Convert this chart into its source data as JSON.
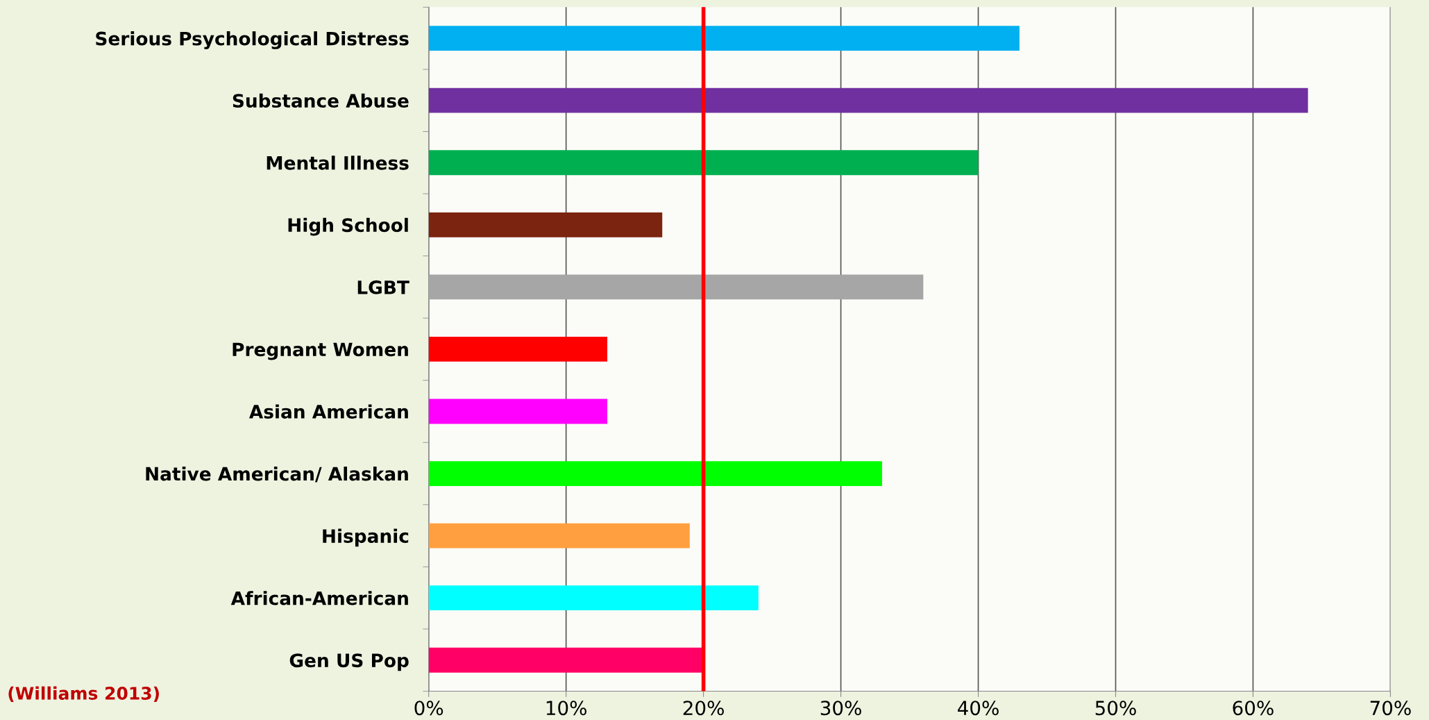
{
  "chart_data": {
    "type": "bar",
    "orientation": "horizontal",
    "categories": [
      "Serious Psychological Distress",
      "Substance Abuse",
      "Mental Illness",
      "High School",
      "LGBT",
      "Pregnant Women",
      "Asian American",
      "Native American/ Alaskan",
      "Hispanic",
      "African-American",
      "Gen US Pop"
    ],
    "values": [
      43,
      64,
      40,
      17,
      36,
      13,
      13,
      33,
      19,
      24,
      20
    ],
    "colors": [
      "#00b0f0",
      "#7030a0",
      "#00b050",
      "#7b2410",
      "#a6a6a6",
      "#ff0000",
      "#ff00ff",
      "#00ff00",
      "#ff9f3f",
      "#00ffff",
      "#ff0066"
    ],
    "xlim": [
      0,
      70
    ],
    "xticks": [
      {
        "value": 0,
        "label": "0%"
      },
      {
        "value": 10,
        "label": "10%"
      },
      {
        "value": 20,
        "label": "20%"
      },
      {
        "value": 30,
        "label": "30%"
      },
      {
        "value": 40,
        "label": "40%"
      },
      {
        "value": 50,
        "label": "50%"
      },
      {
        "value": 60,
        "label": "60%"
      },
      {
        "value": 70,
        "label": "70%"
      }
    ],
    "grid": "x",
    "ref_lines": [
      {
        "axis": "x",
        "value": 20,
        "color": "#ff0000",
        "line_style": "solid"
      }
    ],
    "annotations": [
      "(Williams 2013)"
    ]
  }
}
